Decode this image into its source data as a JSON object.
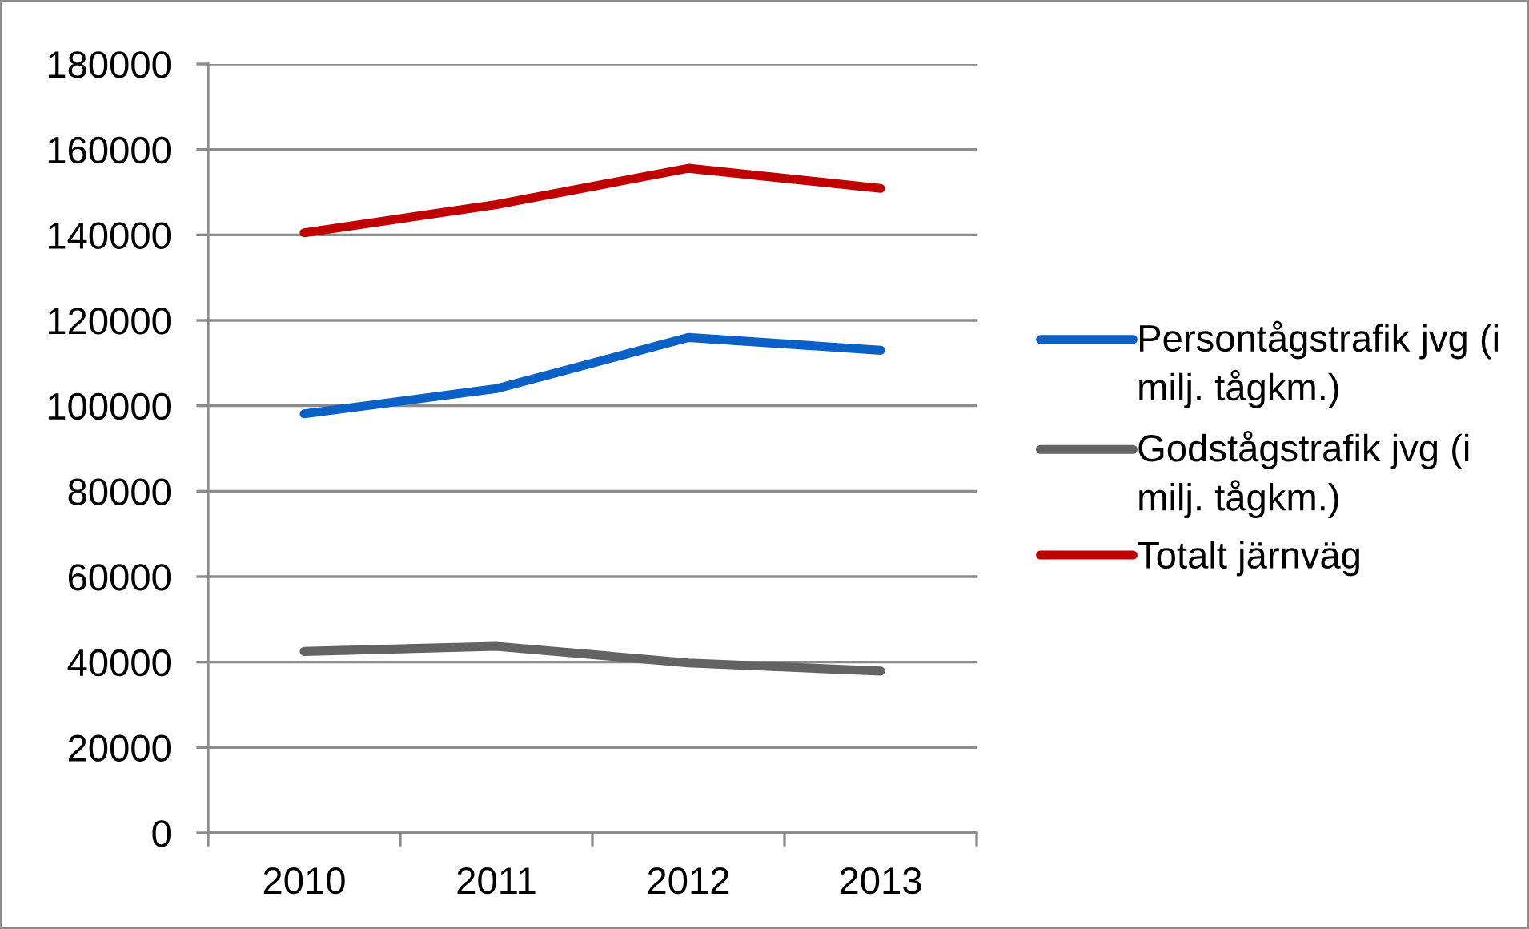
{
  "chart_data": {
    "type": "line",
    "categories": [
      "2010",
      "2011",
      "2012",
      "2013"
    ],
    "series": [
      {
        "name": "Persontågstrafik jvg (i milj. tågkm.)",
        "color": "#0a60c4",
        "values": [
          98100,
          104000,
          116000,
          113000
        ]
      },
      {
        "name": "Godstågstrafik jvg (i milj. tågkm.)",
        "color": "#636363",
        "values": [
          42500,
          43700,
          39800,
          37900
        ]
      },
      {
        "name": "Totalt järnväg",
        "color": "#c00000",
        "values": [
          140500,
          147100,
          155600,
          150900
        ]
      }
    ],
    "ylim": [
      0,
      180000
    ],
    "yticks": [
      0,
      20000,
      40000,
      60000,
      80000,
      100000,
      120000,
      140000,
      160000,
      180000
    ],
    "grid": "y",
    "legend": "right",
    "marker": "none",
    "line_style": "solid"
  }
}
